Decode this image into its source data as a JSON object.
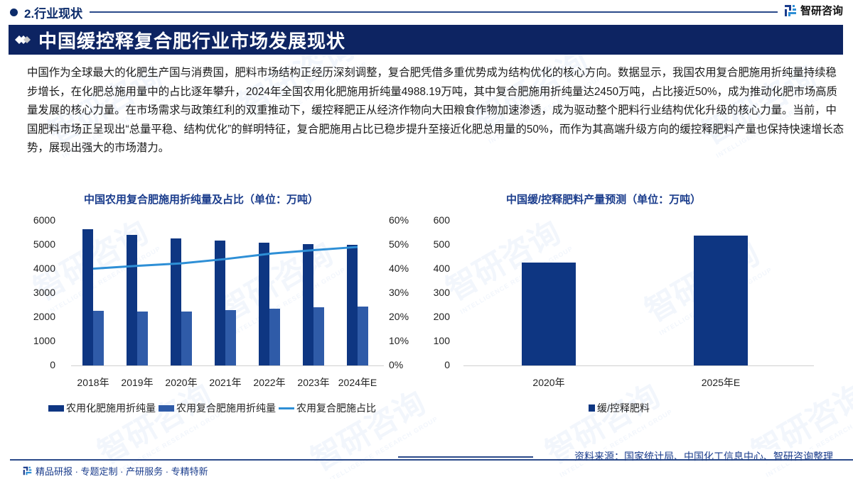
{
  "header": {
    "section_title": "2.行业现状",
    "brand_name": "智研咨询",
    "banner_title": "中国缓控释复合肥行业市场发展现状"
  },
  "intro": {
    "text": "中国作为全球最大的化肥生产国与消费国，肥料市场结构正经历深刻调整，复合肥凭借多重优势成为结构优化的核心方向。数据显示，我国农用复合肥施用折纯量持续稳步增长，在化肥总施用量中的占比逐年攀升，2024年全国农用化肥施用折纯量4988.19万吨，其中复合肥施用折纯量达2450万吨，占比接近50%，成为推动化肥市场高质量发展的核心力量。在市场需求与政策红利的双重推动下，缓控释肥正从经济作物向大田粮食作物加速渗透，成为驱动整个肥料行业结构优化升级的核心力量。当前，中国肥料市场正呈现出“总量平稳、结构优化”的鲜明特征，复合肥施用占比已稳步提升至接近化肥总用量的50%，而作为其高端升级方向的缓控释肥料产量也保持快速增长态势，展现出强大的市场潜力。"
  },
  "colors": {
    "navy": "#0d2462",
    "bar_dark": "#0e3682",
    "bar_light": "#2f5ba8",
    "line": "#2e8fd6",
    "title_blue": "#1a3c8c"
  },
  "chart_data": [
    {
      "type": "bar",
      "title": "中国农用复合肥施用折纯量及占比（单位：万吨）",
      "categories": [
        "2018年",
        "2019年",
        "2020年",
        "2021年",
        "2022年",
        "2023年",
        "2024年E"
      ],
      "series": [
        {
          "name": "农用化肥施用折纯量",
          "type": "bar",
          "axis": "left",
          "values": [
            5653,
            5404,
            5251,
            5191,
            5079,
            5022,
            4988
          ]
        },
        {
          "name": "农用复合肥施用折纯量",
          "type": "bar",
          "axis": "left",
          "values": [
            2268,
            2230,
            2221,
            2288,
            2350,
            2400,
            2450
          ]
        },
        {
          "name": "农用复合肥施占比",
          "type": "line",
          "axis": "right",
          "values": [
            40.1,
            41.3,
            42.3,
            44.1,
            46.3,
            47.8,
            49.1
          ]
        }
      ],
      "y_ticks": [
        "0",
        "1000",
        "2000",
        "3000",
        "4000",
        "5000",
        "6000"
      ],
      "y2_ticks": [
        "0%",
        "10%",
        "20%",
        "30%",
        "40%",
        "50%",
        "60%"
      ],
      "ylim": [
        0,
        6000
      ],
      "y2lim": [
        0,
        60
      ],
      "xlabel": "",
      "ylabel": "",
      "grid": false,
      "legend_position": "bottom"
    },
    {
      "type": "bar",
      "title": "中国缓/控释肥料产量预测（单位：万吨）",
      "categories": [
        "2020年",
        "2025年E"
      ],
      "series": [
        {
          "name": "缓/控释肥料",
          "values": [
            426,
            538
          ]
        }
      ],
      "y_ticks": [
        "0",
        "100",
        "200",
        "300",
        "400",
        "500",
        "600"
      ],
      "ylim": [
        0,
        600
      ],
      "xlabel": "",
      "ylabel": "",
      "grid": false,
      "legend_position": "bottom"
    }
  ],
  "footer": {
    "source": "资料来源：国家统计局、中国化工信息中心、智研咨询整理",
    "slogan": "精品研报 · 专题定制 · 产研服务 · 专精特新"
  },
  "watermark": {
    "text": "智研咨询",
    "sub": "INTELLIGENCE RESEARCH GROUP"
  }
}
